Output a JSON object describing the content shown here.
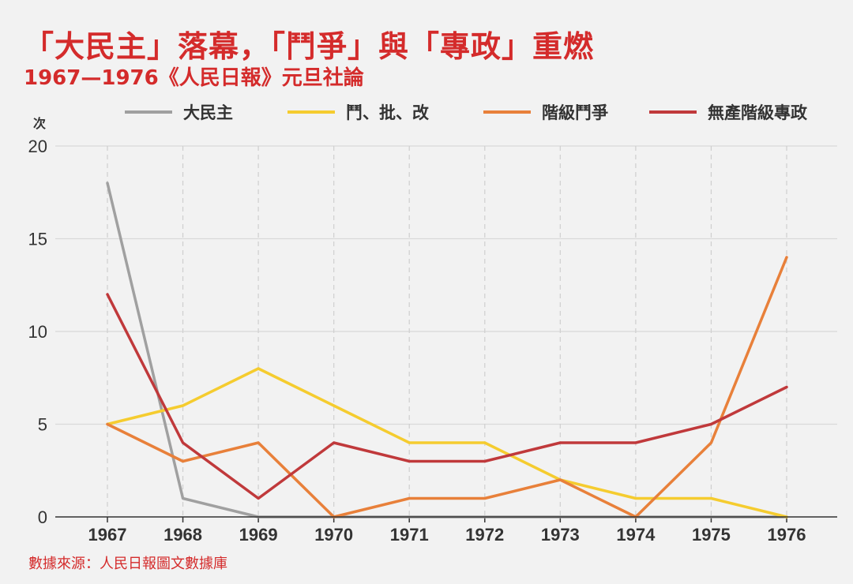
{
  "header": {
    "title": "「大民主」落幕，「鬥爭」與「專政」重燃",
    "subtitle": "1967—1976《人民日報》元旦社論"
  },
  "footer": {
    "source": "數據來源：人民日報圖文數據庫"
  },
  "chart_data": {
    "type": "line",
    "x": [
      "1967",
      "1968",
      "1969",
      "1970",
      "1971",
      "1972",
      "1973",
      "1974",
      "1975",
      "1976"
    ],
    "ylabel": "次",
    "ylim": [
      0,
      20
    ],
    "yticks": [
      0,
      5,
      10,
      15,
      20
    ],
    "grid": true,
    "legend_position": "top",
    "series": [
      {
        "name": "大民主",
        "color": "#a0a0a0",
        "values": [
          18,
          1,
          0,
          0,
          0,
          0,
          0,
          0,
          0,
          0
        ]
      },
      {
        "name": "鬥、批、改",
        "color": "#f5cc2f",
        "values": [
          5,
          6,
          8,
          6,
          4,
          4,
          2,
          1,
          1,
          0
        ]
      },
      {
        "name": "階級鬥爭",
        "color": "#e8803a",
        "values": [
          5,
          3,
          4,
          0,
          1,
          1,
          2,
          0,
          4,
          14
        ]
      },
      {
        "name": "無產階級專政",
        "color": "#c0393b",
        "values": [
          12,
          4,
          1,
          4,
          3,
          3,
          4,
          4,
          5,
          7
        ]
      }
    ]
  }
}
